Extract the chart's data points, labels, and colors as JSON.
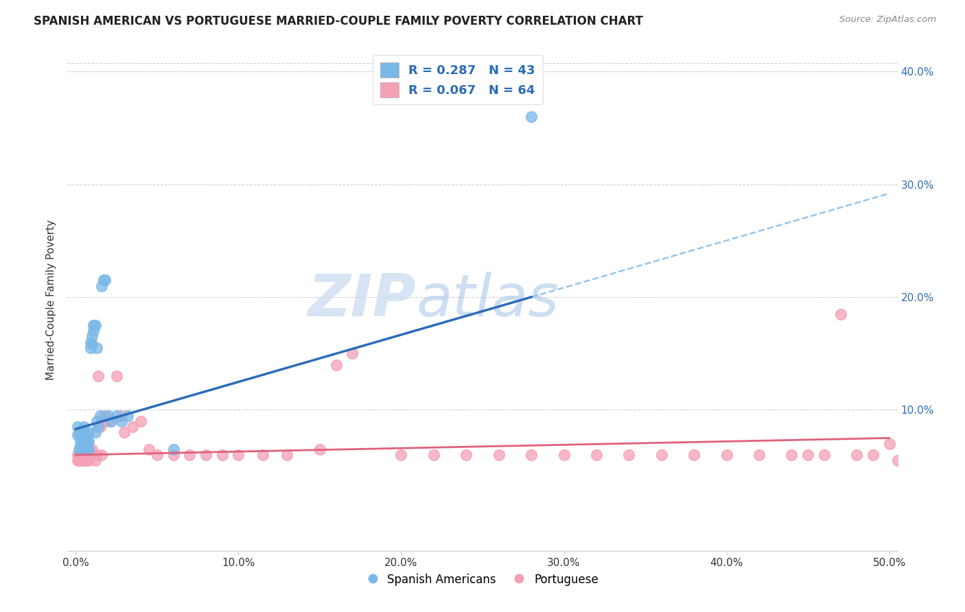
{
  "title": "SPANISH AMERICAN VS PORTUGUESE MARRIED-COUPLE FAMILY POVERTY CORRELATION CHART",
  "source": "Source: ZipAtlas.com",
  "ylabel": "Married-Couple Family Poverty",
  "xlim": [
    -0.005,
    0.505
  ],
  "ylim": [
    -0.025,
    0.42
  ],
  "xtick_labels": [
    "0.0%",
    "10.0%",
    "20.0%",
    "30.0%",
    "40.0%",
    "50.0%"
  ],
  "xtick_vals": [
    0.0,
    0.1,
    0.2,
    0.3,
    0.4,
    0.5
  ],
  "ytick_labels": [
    "10.0%",
    "20.0%",
    "30.0%",
    "40.0%"
  ],
  "ytick_vals": [
    0.1,
    0.2,
    0.3,
    0.4
  ],
  "color_blue": "#7ab8e8",
  "color_pink": "#f4a0b5",
  "color_blue_line": "#2b6cb8",
  "color_pink_line": "#e0607a",
  "watermark_color": "#c8ddf4",
  "legend_line1": "R = 0.287   N = 43",
  "legend_line2": "R = 0.067   N = 64",
  "legend_label1": "Spanish Americans",
  "legend_label2": "Portuguese",
  "spanish_x": [
    0.001,
    0.001,
    0.002,
    0.002,
    0.003,
    0.003,
    0.003,
    0.004,
    0.004,
    0.004,
    0.005,
    0.005,
    0.005,
    0.006,
    0.006,
    0.006,
    0.007,
    0.007,
    0.008,
    0.008,
    0.008,
    0.009,
    0.009,
    0.01,
    0.01,
    0.011,
    0.011,
    0.012,
    0.012,
    0.013,
    0.013,
    0.014,
    0.015,
    0.016,
    0.017,
    0.018,
    0.02,
    0.022,
    0.025,
    0.028,
    0.032,
    0.06,
    0.28
  ],
  "spanish_y": [
    0.078,
    0.085,
    0.08,
    0.065,
    0.068,
    0.072,
    0.078,
    0.065,
    0.07,
    0.075,
    0.07,
    0.08,
    0.085,
    0.068,
    0.072,
    0.078,
    0.072,
    0.065,
    0.072,
    0.08,
    0.065,
    0.155,
    0.16,
    0.158,
    0.165,
    0.17,
    0.175,
    0.175,
    0.08,
    0.155,
    0.09,
    0.085,
    0.095,
    0.21,
    0.215,
    0.215,
    0.095,
    0.09,
    0.095,
    0.09,
    0.095,
    0.065,
    0.36
  ],
  "portuguese_x": [
    0.001,
    0.001,
    0.002,
    0.002,
    0.003,
    0.003,
    0.004,
    0.004,
    0.005,
    0.005,
    0.006,
    0.006,
    0.007,
    0.007,
    0.008,
    0.008,
    0.009,
    0.01,
    0.011,
    0.012,
    0.013,
    0.014,
    0.015,
    0.016,
    0.017,
    0.018,
    0.02,
    0.025,
    0.028,
    0.03,
    0.035,
    0.04,
    0.045,
    0.05,
    0.06,
    0.07,
    0.08,
    0.09,
    0.1,
    0.115,
    0.13,
    0.15,
    0.16,
    0.17,
    0.2,
    0.22,
    0.24,
    0.26,
    0.28,
    0.3,
    0.32,
    0.34,
    0.36,
    0.38,
    0.4,
    0.42,
    0.44,
    0.45,
    0.46,
    0.47,
    0.48,
    0.49,
    0.5,
    0.505
  ],
  "portuguese_y": [
    0.06,
    0.055,
    0.06,
    0.055,
    0.06,
    0.055,
    0.06,
    0.055,
    0.06,
    0.055,
    0.06,
    0.055,
    0.06,
    0.055,
    0.065,
    0.055,
    0.06,
    0.065,
    0.06,
    0.055,
    0.06,
    0.13,
    0.085,
    0.06,
    0.09,
    0.095,
    0.09,
    0.13,
    0.095,
    0.08,
    0.085,
    0.09,
    0.065,
    0.06,
    0.06,
    0.06,
    0.06,
    0.06,
    0.06,
    0.06,
    0.06,
    0.065,
    0.14,
    0.15,
    0.06,
    0.06,
    0.06,
    0.06,
    0.06,
    0.06,
    0.06,
    0.06,
    0.06,
    0.06,
    0.06,
    0.06,
    0.06,
    0.06,
    0.06,
    0.185,
    0.06,
    0.06,
    0.07,
    0.055
  ]
}
